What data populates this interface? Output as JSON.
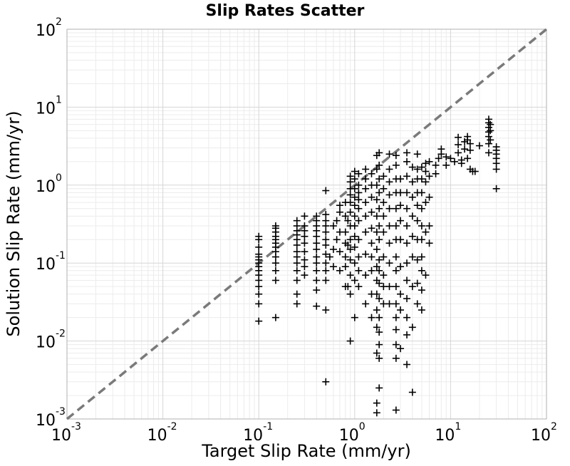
{
  "chart_data": {
    "type": "scatter",
    "title": "Slip Rates Scatter",
    "xlabel": "Target Slip Rate (mm/yr)",
    "ylabel": "Solution Slip Rate (mm/yr)",
    "xscale": "log",
    "yscale": "log",
    "xlim": [
      0.001,
      100
    ],
    "ylim": [
      0.001,
      100
    ],
    "grid": true,
    "x_ticks": [
      {
        "base": "10",
        "exp": "-3",
        "value": 0.001
      },
      {
        "base": "10",
        "exp": "-2",
        "value": 0.01
      },
      {
        "base": "10",
        "exp": "-1",
        "value": 0.1
      },
      {
        "base": "10",
        "exp": "0",
        "value": 1
      },
      {
        "base": "10",
        "exp": "1",
        "value": 10
      },
      {
        "base": "10",
        "exp": "2",
        "value": 100
      }
    ],
    "y_ticks": [
      {
        "base": "10",
        "exp": "-3",
        "value": 0.001
      },
      {
        "base": "10",
        "exp": "-2",
        "value": 0.01
      },
      {
        "base": "10",
        "exp": "-1",
        "value": 0.1
      },
      {
        "base": "10",
        "exp": "0",
        "value": 1
      },
      {
        "base": "10",
        "exp": "1",
        "value": 10
      },
      {
        "base": "10",
        "exp": "2",
        "value": 100
      }
    ],
    "reference_line": {
      "from": [
        0.001,
        0.001
      ],
      "to": [
        100,
        100
      ],
      "style": "dashed",
      "color": "#7a7a7a"
    },
    "marker": "plus",
    "marker_color": "#000000",
    "points": [
      [
        0.1,
        0.018
      ],
      [
        0.1,
        0.03
      ],
      [
        0.1,
        0.04
      ],
      [
        0.1,
        0.05
      ],
      [
        0.1,
        0.06
      ],
      [
        0.1,
        0.07
      ],
      [
        0.1,
        0.08
      ],
      [
        0.1,
        0.09
      ],
      [
        0.1,
        0.1
      ],
      [
        0.1,
        0.11
      ],
      [
        0.1,
        0.12
      ],
      [
        0.1,
        0.13
      ],
      [
        0.1,
        0.16
      ],
      [
        0.1,
        0.2
      ],
      [
        0.1,
        0.22
      ],
      [
        0.15,
        0.02
      ],
      [
        0.15,
        0.06
      ],
      [
        0.15,
        0.08
      ],
      [
        0.15,
        0.1
      ],
      [
        0.15,
        0.12
      ],
      [
        0.15,
        0.14
      ],
      [
        0.15,
        0.16
      ],
      [
        0.15,
        0.18
      ],
      [
        0.15,
        0.2
      ],
      [
        0.15,
        0.22
      ],
      [
        0.15,
        0.25
      ],
      [
        0.15,
        0.28
      ],
      [
        0.15,
        0.3
      ],
      [
        0.25,
        0.03
      ],
      [
        0.25,
        0.04
      ],
      [
        0.25,
        0.06
      ],
      [
        0.25,
        0.08
      ],
      [
        0.25,
        0.1
      ],
      [
        0.25,
        0.12
      ],
      [
        0.25,
        0.14
      ],
      [
        0.25,
        0.17
      ],
      [
        0.25,
        0.2
      ],
      [
        0.25,
        0.23
      ],
      [
        0.25,
        0.26
      ],
      [
        0.25,
        0.3
      ],
      [
        0.25,
        0.35
      ],
      [
        0.3,
        0.07
      ],
      [
        0.3,
        0.09
      ],
      [
        0.3,
        0.11
      ],
      [
        0.3,
        0.14
      ],
      [
        0.3,
        0.18
      ],
      [
        0.3,
        0.22
      ],
      [
        0.3,
        0.26
      ],
      [
        0.3,
        0.3
      ],
      [
        0.3,
        0.4
      ],
      [
        0.4,
        0.028
      ],
      [
        0.4,
        0.045
      ],
      [
        0.4,
        0.06
      ],
      [
        0.4,
        0.08
      ],
      [
        0.4,
        0.1
      ],
      [
        0.4,
        0.12
      ],
      [
        0.4,
        0.15
      ],
      [
        0.4,
        0.18
      ],
      [
        0.4,
        0.22
      ],
      [
        0.4,
        0.26
      ],
      [
        0.4,
        0.3
      ],
      [
        0.4,
        0.35
      ],
      [
        0.4,
        0.4
      ],
      [
        0.5,
        0.003
      ],
      [
        0.5,
        0.025
      ],
      [
        0.5,
        0.06
      ],
      [
        0.5,
        0.08
      ],
      [
        0.5,
        0.1
      ],
      [
        0.5,
        0.13
      ],
      [
        0.5,
        0.17
      ],
      [
        0.5,
        0.2
      ],
      [
        0.5,
        0.25
      ],
      [
        0.5,
        0.3
      ],
      [
        0.5,
        0.35
      ],
      [
        0.5,
        0.42
      ],
      [
        0.5,
        0.85
      ],
      [
        0.55,
        0.12
      ],
      [
        0.6,
        0.09
      ],
      [
        0.6,
        0.15
      ],
      [
        0.6,
        0.3
      ],
      [
        0.65,
        0.2
      ],
      [
        0.65,
        0.35
      ],
      [
        0.7,
        0.08
      ],
      [
        0.7,
        0.14
      ],
      [
        0.7,
        0.25
      ],
      [
        0.7,
        0.45
      ],
      [
        0.7,
        0.55
      ],
      [
        0.8,
        0.05
      ],
      [
        0.8,
        0.09
      ],
      [
        0.8,
        0.12
      ],
      [
        0.8,
        0.18
      ],
      [
        0.8,
        0.25
      ],
      [
        0.8,
        0.4
      ],
      [
        0.8,
        0.6
      ],
      [
        0.85,
        0.05
      ],
      [
        0.85,
        0.17
      ],
      [
        0.85,
        0.35
      ],
      [
        0.9,
        0.01
      ],
      [
        0.9,
        0.04
      ],
      [
        0.9,
        0.07
      ],
      [
        0.9,
        0.11
      ],
      [
        0.9,
        0.15
      ],
      [
        0.9,
        0.2
      ],
      [
        0.9,
        0.3
      ],
      [
        0.9,
        0.45
      ],
      [
        0.9,
        0.6
      ],
      [
        0.9,
        0.75
      ],
      [
        0.9,
        0.9
      ],
      [
        0.9,
        1.1
      ],
      [
        0.9,
        1.3
      ],
      [
        1.0,
        0.02
      ],
      [
        1.0,
        0.06
      ],
      [
        1.0,
        0.1
      ],
      [
        1.0,
        0.16
      ],
      [
        1.0,
        0.22
      ],
      [
        1.0,
        0.3
      ],
      [
        1.0,
        0.4
      ],
      [
        1.0,
        0.55
      ],
      [
        1.0,
        0.7
      ],
      [
        1.0,
        0.9
      ],
      [
        1.0,
        1.2
      ],
      [
        1.0,
        1.5
      ],
      [
        1.1,
        0.05
      ],
      [
        1.1,
        0.08
      ],
      [
        1.1,
        0.12
      ],
      [
        1.1,
        0.2
      ],
      [
        1.1,
        0.35
      ],
      [
        1.1,
        0.5
      ],
      [
        1.1,
        0.65
      ],
      [
        1.1,
        0.8
      ],
      [
        1.1,
        1.0
      ],
      [
        1.1,
        1.4
      ],
      [
        1.3,
        0.03
      ],
      [
        1.3,
        0.07
      ],
      [
        1.3,
        0.13
      ],
      [
        1.3,
        0.25
      ],
      [
        1.3,
        0.4
      ],
      [
        1.3,
        0.6
      ],
      [
        1.3,
        0.9
      ],
      [
        1.3,
        1.2
      ],
      [
        1.3,
        1.6
      ],
      [
        1.5,
        0.02
      ],
      [
        1.5,
        0.04
      ],
      [
        1.5,
        0.08
      ],
      [
        1.5,
        0.12
      ],
      [
        1.5,
        0.18
      ],
      [
        1.5,
        0.28
      ],
      [
        1.5,
        0.45
      ],
      [
        1.5,
        0.7
      ],
      [
        1.5,
        1.0
      ],
      [
        1.5,
        1.4
      ],
      [
        1.7,
        0.0012
      ],
      [
        1.7,
        0.0016
      ],
      [
        1.7,
        0.007
      ],
      [
        1.7,
        0.015
      ],
      [
        1.7,
        0.025
      ],
      [
        1.7,
        0.04
      ],
      [
        1.7,
        0.06
      ],
      [
        1.7,
        0.09
      ],
      [
        1.7,
        0.15
      ],
      [
        1.7,
        0.25
      ],
      [
        1.7,
        0.4
      ],
      [
        1.7,
        0.65
      ],
      [
        1.7,
        1.0
      ],
      [
        1.7,
        1.6
      ],
      [
        1.7,
        2.4
      ],
      [
        1.8,
        0.0025
      ],
      [
        1.8,
        0.006
      ],
      [
        1.8,
        0.009
      ],
      [
        1.8,
        0.013
      ],
      [
        1.8,
        0.02
      ],
      [
        1.8,
        0.035
      ],
      [
        1.8,
        0.055
      ],
      [
        1.8,
        0.08
      ],
      [
        1.8,
        0.11
      ],
      [
        1.8,
        0.2
      ],
      [
        1.8,
        0.3
      ],
      [
        1.8,
        0.5
      ],
      [
        1.8,
        0.8
      ],
      [
        1.8,
        1.2
      ],
      [
        1.8,
        1.8
      ],
      [
        1.8,
        2.6
      ],
      [
        2.0,
        0.03
      ],
      [
        2.0,
        0.05
      ],
      [
        2.0,
        0.07
      ],
      [
        2.0,
        0.12
      ],
      [
        2.0,
        0.25
      ],
      [
        2.0,
        0.4
      ],
      [
        2.0,
        0.6
      ],
      [
        2.0,
        0.9
      ],
      [
        2.0,
        1.3
      ],
      [
        2.3,
        0.03
      ],
      [
        2.3,
        0.05
      ],
      [
        2.3,
        0.1
      ],
      [
        2.3,
        0.18
      ],
      [
        2.3,
        0.3
      ],
      [
        2.3,
        0.5
      ],
      [
        2.3,
        0.75
      ],
      [
        2.3,
        1.1
      ],
      [
        2.3,
        1.6
      ],
      [
        2.3,
        2.5
      ],
      [
        2.7,
        0.0013
      ],
      [
        2.7,
        0.006
      ],
      [
        2.7,
        0.009
      ],
      [
        2.7,
        0.014
      ],
      [
        2.7,
        0.02
      ],
      [
        2.7,
        0.03
      ],
      [
        2.7,
        0.05
      ],
      [
        2.7,
        0.08
      ],
      [
        2.7,
        0.12
      ],
      [
        2.7,
        0.2
      ],
      [
        2.7,
        0.3
      ],
      [
        2.7,
        0.5
      ],
      [
        2.7,
        0.8
      ],
      [
        2.7,
        1.2
      ],
      [
        2.7,
        1.8
      ],
      [
        2.7,
        2.4
      ],
      [
        3.0,
        0.008
      ],
      [
        3.0,
        0.025
      ],
      [
        3.0,
        0.04
      ],
      [
        3.0,
        0.09
      ],
      [
        3.0,
        0.2
      ],
      [
        3.0,
        0.35
      ],
      [
        3.0,
        0.55
      ],
      [
        3.0,
        0.8
      ],
      [
        3.0,
        1.2
      ],
      [
        3.5,
        0.005
      ],
      [
        3.5,
        0.012
      ],
      [
        3.5,
        0.02
      ],
      [
        3.5,
        0.035
      ],
      [
        3.5,
        0.06
      ],
      [
        3.5,
        0.1
      ],
      [
        3.5,
        0.18
      ],
      [
        3.5,
        0.3
      ],
      [
        3.5,
        0.5
      ],
      [
        3.5,
        0.8
      ],
      [
        3.5,
        1.3
      ],
      [
        3.5,
        2.0
      ],
      [
        3.5,
        2.6
      ],
      [
        4.0,
        0.0022
      ],
      [
        4.0,
        0.015
      ],
      [
        4.0,
        0.05
      ],
      [
        4.0,
        0.12
      ],
      [
        4.0,
        0.22
      ],
      [
        4.0,
        0.4
      ],
      [
        4.0,
        0.7
      ],
      [
        4.0,
        1.1
      ],
      [
        4.0,
        1.7
      ],
      [
        4.5,
        0.03
      ],
      [
        4.5,
        0.055
      ],
      [
        4.5,
        0.11
      ],
      [
        4.5,
        0.2
      ],
      [
        4.5,
        0.35
      ],
      [
        4.5,
        0.55
      ],
      [
        4.5,
        0.8
      ],
      [
        4.5,
        1.2
      ],
      [
        4.5,
        1.6
      ],
      [
        4.5,
        2.5
      ],
      [
        5.0,
        0.025
      ],
      [
        5.0,
        0.045
      ],
      [
        5.0,
        0.08
      ],
      [
        5.0,
        0.12
      ],
      [
        5.0,
        0.2
      ],
      [
        5.0,
        0.3
      ],
      [
        5.0,
        0.5
      ],
      [
        5.0,
        0.8
      ],
      [
        5.0,
        1.2
      ],
      [
        5.0,
        1.7
      ],
      [
        5.5,
        0.07
      ],
      [
        5.5,
        0.25
      ],
      [
        5.5,
        0.6
      ],
      [
        5.5,
        1.1
      ],
      [
        5.5,
        1.5
      ],
      [
        5.5,
        1.9
      ],
      [
        6.0,
        0.18
      ],
      [
        6.0,
        0.3
      ],
      [
        6.0,
        0.7
      ],
      [
        6.0,
        1.3
      ],
      [
        6.0,
        2.0
      ],
      [
        7.0,
        1.4
      ],
      [
        7.0,
        1.8
      ],
      [
        7.5,
        2.2
      ],
      [
        8.0,
        2.5
      ],
      [
        8.0,
        2.9
      ],
      [
        9.0,
        1.8
      ],
      [
        9.0,
        2.3
      ],
      [
        10.0,
        2.2
      ],
      [
        11.0,
        2.0
      ],
      [
        12.0,
        2.6
      ],
      [
        12.0,
        3.3
      ],
      [
        12.0,
        4.1
      ],
      [
        13.0,
        2.1
      ],
      [
        13.0,
        1.9
      ],
      [
        14.0,
        2.9
      ],
      [
        14.0,
        3.6
      ],
      [
        15.0,
        2.2
      ],
      [
        15.0,
        3.8
      ],
      [
        15.0,
        4.2
      ],
      [
        16.0,
        1.6
      ],
      [
        16.0,
        2.8
      ],
      [
        16.0,
        3.4
      ],
      [
        17.0,
        1.5
      ],
      [
        18.0,
        1.5
      ],
      [
        20.0,
        3.2
      ],
      [
        25.0,
        2.6
      ],
      [
        25.0,
        3.4
      ],
      [
        25.0,
        4.2
      ],
      [
        25.0,
        4.8
      ],
      [
        25.0,
        5.5
      ],
      [
        25.0,
        6.3
      ],
      [
        25.0,
        7.0
      ],
      [
        26.0,
        3.8
      ],
      [
        26.0,
        5.0
      ],
      [
        26.0,
        6.0
      ],
      [
        30.0,
        0.9
      ],
      [
        30.0,
        1.6
      ],
      [
        30.0,
        1.9
      ],
      [
        30.0,
        2.2
      ],
      [
        30.0,
        2.5
      ],
      [
        30.0,
        2.8
      ],
      [
        30.0,
        3.1
      ]
    ]
  }
}
